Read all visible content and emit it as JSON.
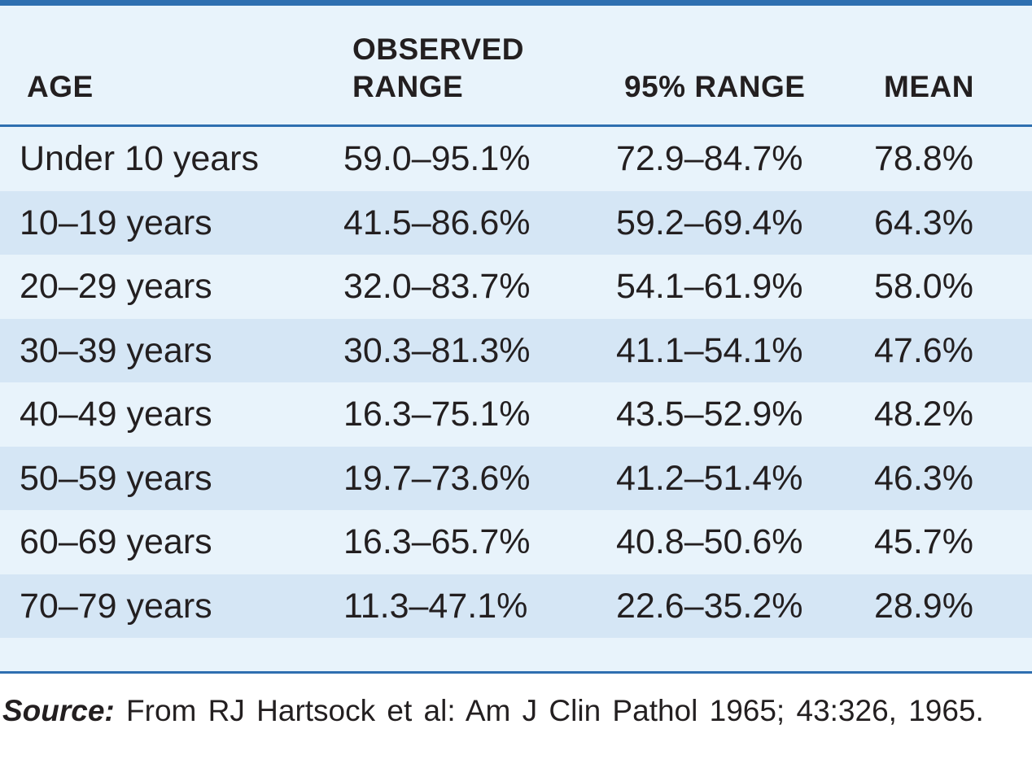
{
  "table": {
    "headers": {
      "age": "AGE",
      "observed_line1": "OBSERVED",
      "observed_line2": "RANGE",
      "range95": "95% RANGE",
      "mean": "MEAN"
    },
    "rows": [
      {
        "age": "Under 10 years",
        "observed": "59.0–95.1%",
        "range95": "72.9–84.7%",
        "mean": "78.8%"
      },
      {
        "age": "10–19 years",
        "observed": "41.5–86.6%",
        "range95": "59.2–69.4%",
        "mean": "64.3%"
      },
      {
        "age": "20–29 years",
        "observed": "32.0–83.7%",
        "range95": "54.1–61.9%",
        "mean": "58.0%"
      },
      {
        "age": "30–39 years",
        "observed": "30.3–81.3%",
        "range95": "41.1–54.1%",
        "mean": "47.6%"
      },
      {
        "age": "40–49 years",
        "observed": "16.3–75.1%",
        "range95": "43.5–52.9%",
        "mean": "48.2%"
      },
      {
        "age": "50–59 years",
        "observed": "19.7–73.6%",
        "range95": "41.2–51.4%",
        "mean": "46.3%"
      },
      {
        "age": "60–69 years",
        "observed": "16.3–65.7%",
        "range95": "40.8–50.6%",
        "mean": "45.7%"
      },
      {
        "age": "70–79 years",
        "observed": "11.3–47.1%",
        "range95": "22.6–35.2%",
        "mean": "28.9%"
      }
    ]
  },
  "source": {
    "label": "Source:",
    "text": "From RJ Hartsock et al: Am J Clin Pathol 1965; 43:326, 1965."
  },
  "colors": {
    "rule": "#2e6fb0",
    "row_light": "#e8f3fb",
    "row_shaded": "#d5e6f5",
    "text": "#231f20"
  }
}
